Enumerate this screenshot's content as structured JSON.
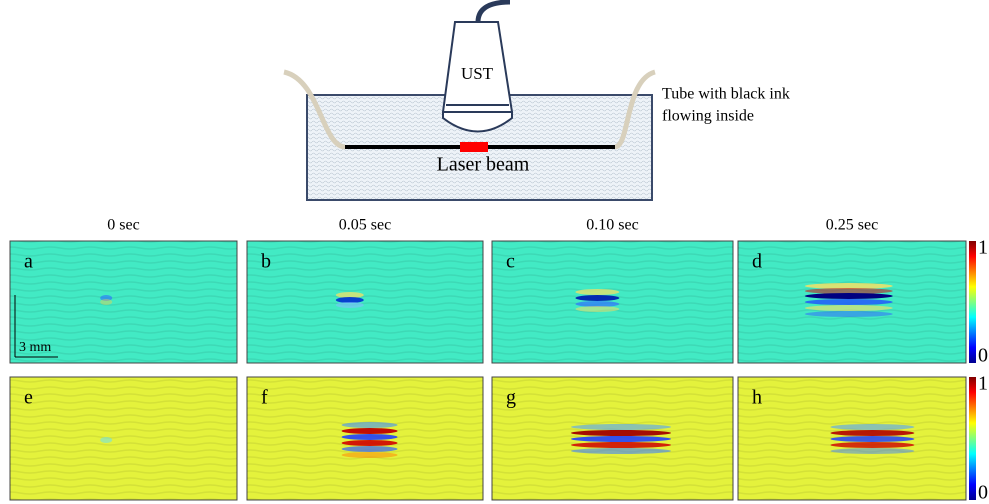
{
  "diagram": {
    "probe_label": "UST",
    "tube_label": [
      "Tube with black ink",
      "flowing inside"
    ],
    "laser_label": "Laser beam"
  },
  "time_labels": [
    "0 sec",
    "0.05 sec",
    "0.10 sec",
    "0.25 sec"
  ],
  "panels": [
    [
      "a",
      "b",
      "c",
      "d"
    ],
    [
      "e",
      "f",
      "g",
      "h"
    ]
  ],
  "scale_bar": "3 mm",
  "colorbars": [
    {
      "max": 1,
      "min": 0
    },
    {
      "max": 1,
      "min": 0
    }
  ]
}
